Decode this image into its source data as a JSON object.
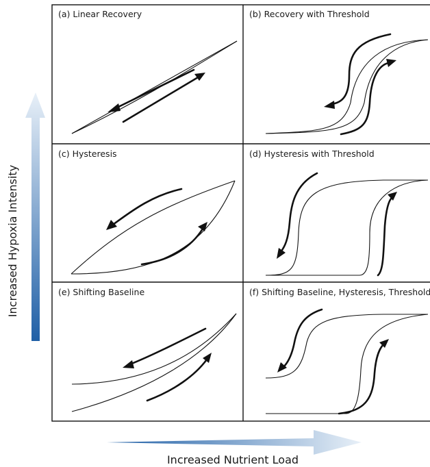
{
  "axes": {
    "y_label": "Increased Hypoxia Intensity",
    "x_label": "Increased Nutrient Load"
  },
  "panels": {
    "a": "(a) Linear Recovery",
    "b": "(b) Recovery with Threshold",
    "c": "(c) Hysteresis",
    "d": "(d) Hysteresis with Threshold",
    "e": "(e) Shifting Baseline",
    "f": "(f) Shifting Baseline, Hysteresis, Threshold"
  },
  "colors": {
    "arrow_dark": "#1f5fa6",
    "arrow_light": "#e8f0f8",
    "line": "#111111"
  }
}
